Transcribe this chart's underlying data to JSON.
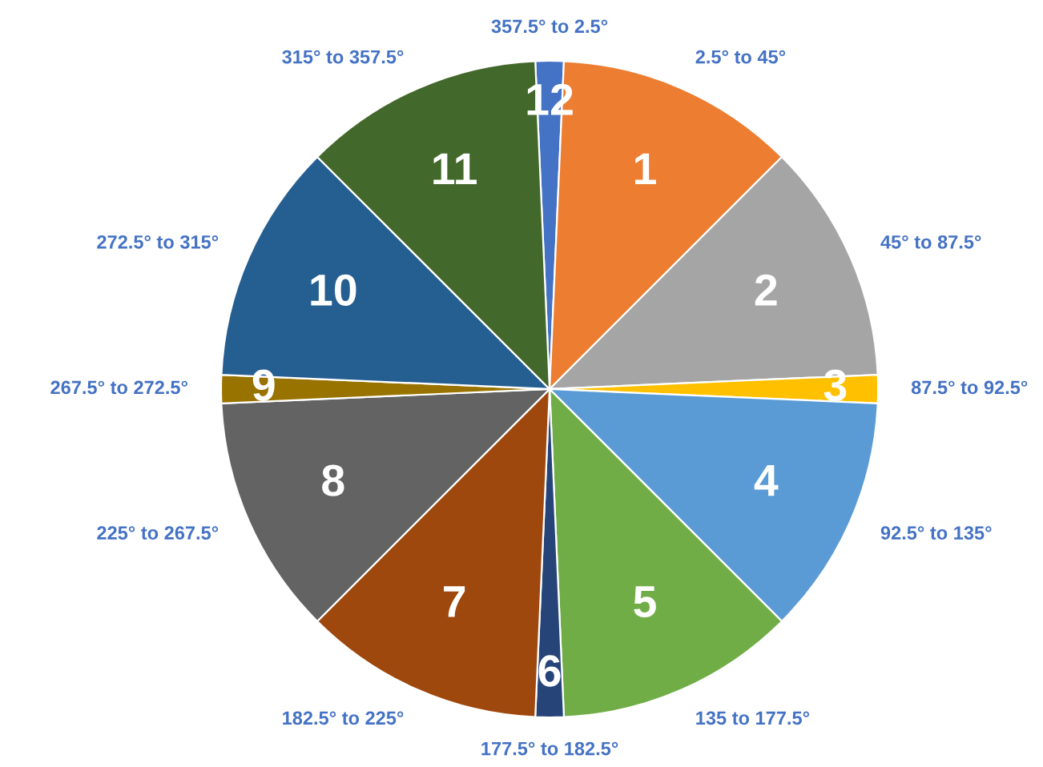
{
  "chart_data": {
    "type": "pie",
    "categories": [
      "12",
      "1",
      "2",
      "3",
      "4",
      "5",
      "6",
      "7",
      "8",
      "9",
      "10",
      "11"
    ],
    "values": [
      1.3889,
      11.8056,
      11.8056,
      1.3889,
      11.8056,
      11.8056,
      1.3889,
      11.8056,
      11.8056,
      1.3889,
      11.8056,
      11.8056
    ],
    "colors": [
      "#4472c4",
      "#ed7d31",
      "#a5a5a5",
      "#ffc000",
      "#5b9bd5",
      "#70ad47",
      "#264478",
      "#9e480e",
      "#636363",
      "#997300",
      "#255e91",
      "#43682b"
    ],
    "annotations": [
      "357.5° to 2.5°",
      "2.5° to 45°",
      "45° to 87.5°",
      "87.5° to 92.5°",
      "92.5° to 135°",
      "135 to 177.5°",
      "177.5° to 182.5°",
      "182.5° to 225°",
      "225° to 267.5°",
      "267.5° to 272.5°",
      "272.5° to 315°",
      "315° to 357.5°"
    ],
    "legend": false
  }
}
